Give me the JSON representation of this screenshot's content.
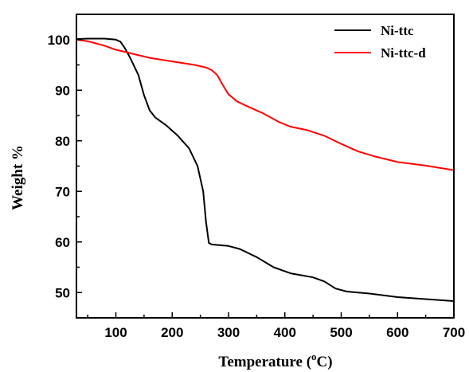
{
  "chart_data": {
    "type": "line",
    "xlabel": "Temperature",
    "xlabel_unit_prefix": "(",
    "xlabel_unit_sup": "o",
    "xlabel_unit_main": "C)",
    "ylabel": "Weight %",
    "xlim": [
      30,
      700
    ],
    "ylim": [
      45,
      105
    ],
    "xticks": [
      100,
      200,
      300,
      400,
      500,
      600,
      700
    ],
    "yticks": [
      50,
      60,
      70,
      80,
      90,
      100
    ],
    "grid": false,
    "legend_position": "top-right",
    "series": [
      {
        "name": "Ni-ttc",
        "color": "#000000",
        "x": [
          30,
          50,
          80,
          100,
          108,
          115,
          125,
          140,
          150,
          160,
          170,
          190,
          210,
          230,
          245,
          255,
          260,
          265,
          270,
          300,
          320,
          350,
          380,
          410,
          450,
          470,
          490,
          510,
          550,
          600,
          650,
          700
        ],
        "y": [
          100.1,
          100.2,
          100.2,
          100.0,
          99.6,
          98.5,
          96.5,
          93.0,
          89.0,
          86.0,
          84.6,
          83.0,
          81.0,
          78.5,
          75.0,
          70.0,
          64.0,
          59.8,
          59.5,
          59.2,
          58.6,
          57.0,
          55.0,
          53.8,
          53.0,
          52.2,
          50.8,
          50.2,
          49.8,
          49.1,
          48.7,
          48.3
        ]
      },
      {
        "name": "Ni-ttc-d",
        "color": "#ff0000",
        "x": [
          30,
          50,
          80,
          100,
          130,
          160,
          200,
          240,
          260,
          270,
          280,
          290,
          300,
          315,
          330,
          360,
          390,
          410,
          440,
          470,
          500,
          530,
          560,
          600,
          650,
          700
        ],
        "y": [
          100.0,
          99.7,
          98.8,
          98.0,
          97.2,
          96.4,
          95.7,
          95.0,
          94.5,
          94.0,
          93.0,
          91.0,
          89.2,
          87.8,
          87.0,
          85.5,
          83.7,
          82.8,
          82.1,
          81.0,
          79.4,
          77.9,
          76.9,
          75.8,
          75.1,
          74.2
        ]
      }
    ]
  }
}
